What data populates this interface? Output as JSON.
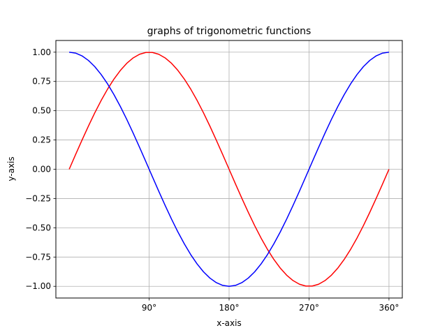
{
  "chart_data": {
    "type": "line",
    "title": "graphs of trigonometric functions",
    "xlabel": "x-axis",
    "ylabel": "y-axis",
    "xlim": [
      -15,
      375
    ],
    "ylim": [
      -1.1,
      1.1
    ],
    "grid": true,
    "x_ticks": [
      90,
      180,
      270,
      360
    ],
    "x_tick_labels": [
      "90°",
      "180°",
      "270°",
      "360°"
    ],
    "y_ticks": [
      -1.0,
      -0.75,
      -0.5,
      -0.25,
      0.0,
      0.25,
      0.5,
      0.75,
      1.0
    ],
    "y_tick_labels": [
      "−1.00",
      "−0.75",
      "−0.50",
      "−0.25",
      "0.00",
      "0.25",
      "0.50",
      "0.75",
      "1.00"
    ],
    "x": [
      0,
      7.2,
      14.4,
      21.6,
      28.8,
      36,
      43.2,
      50.4,
      57.6,
      64.8,
      72,
      79.2,
      86.4,
      93.6,
      100.8,
      108,
      115.2,
      122.4,
      129.6,
      136.8,
      144,
      151.2,
      158.4,
      165.6,
      172.8,
      180,
      187.2,
      194.4,
      201.6,
      208.8,
      216,
      223.2,
      230.4,
      237.6,
      244.8,
      252,
      259.2,
      266.4,
      273.6,
      280.8,
      288,
      295.2,
      302.4,
      309.6,
      316.8,
      324,
      331.2,
      338.4,
      345.6,
      352.8,
      360
    ],
    "series": [
      {
        "color": "#ff0000",
        "values": [
          0.0,
          0.1253,
          0.2487,
          0.3681,
          0.4818,
          0.5878,
          0.6845,
          0.7705,
          0.8443,
          0.9048,
          0.9511,
          0.9823,
          0.998,
          0.998,
          0.9823,
          0.9511,
          0.9048,
          0.8443,
          0.7705,
          0.6845,
          0.5878,
          0.4818,
          0.3681,
          0.2487,
          0.1253,
          0.0,
          -0.1253,
          -0.2487,
          -0.3681,
          -0.4818,
          -0.5878,
          -0.6845,
          -0.7705,
          -0.8443,
          -0.9048,
          -0.9511,
          -0.9823,
          -0.998,
          -0.998,
          -0.9823,
          -0.9511,
          -0.9048,
          -0.8443,
          -0.7705,
          -0.6845,
          -0.5878,
          -0.4818,
          -0.3681,
          -0.2487,
          -0.1253,
          0.0
        ]
      },
      {
        "color": "#0000ff",
        "values": [
          1.0,
          0.9921,
          0.9686,
          0.9298,
          0.8763,
          0.809,
          0.729,
          0.6374,
          0.5358,
          0.4258,
          0.309,
          0.1874,
          0.0628,
          -0.0628,
          -0.1874,
          -0.309,
          -0.4258,
          -0.5358,
          -0.6374,
          -0.729,
          -0.809,
          -0.8763,
          -0.9298,
          -0.9686,
          -0.9921,
          -1.0,
          -0.9921,
          -0.9686,
          -0.9298,
          -0.8763,
          -0.809,
          -0.729,
          -0.6374,
          -0.5358,
          -0.4258,
          -0.309,
          -0.1874,
          -0.0628,
          0.0628,
          0.1874,
          0.309,
          0.4258,
          0.5358,
          0.6374,
          0.729,
          0.809,
          0.8763,
          0.9298,
          0.9686,
          0.9921,
          1.0
        ]
      }
    ]
  }
}
